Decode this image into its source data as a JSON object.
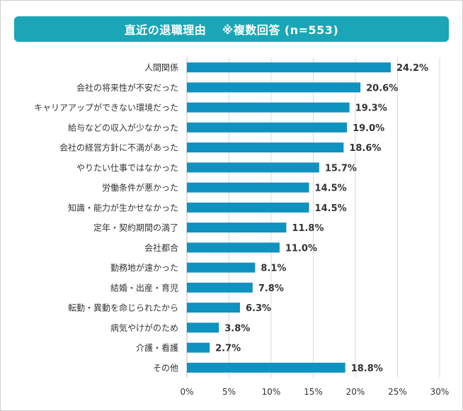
{
  "header": {
    "title": "直近の退職理由　 ※複数回答 (n=553)"
  },
  "chart_data": {
    "type": "bar",
    "orientation": "horizontal",
    "title": "直近の退職理由　 ※複数回答 (n=553)",
    "categories": [
      "人間関係",
      "会社の将来性が不安だった",
      "キャリアアップができない環境だった",
      "給与などの収入が少なかった",
      "会社の経営方針に不満があった",
      "やりたい仕事ではなかった",
      "労働条件が悪かった",
      "知識・能力が生かせなかった",
      "定年・契約期間の満了",
      "会社都合",
      "勤務地が遠かった",
      "結婚・出産・育児",
      "転勤・異動を命じられたから",
      "病気やけがのため",
      "介護・看護",
      "その他"
    ],
    "values": [
      24.2,
      20.6,
      19.3,
      19.0,
      18.6,
      15.7,
      14.5,
      14.5,
      11.8,
      11.0,
      8.1,
      7.8,
      6.3,
      3.8,
      2.7,
      18.8
    ],
    "value_labels": [
      "24.2%",
      "20.6%",
      "19.3%",
      "19.0%",
      "18.6%",
      "15.7%",
      "14.5%",
      "14.5%",
      "11.8%",
      "11.0%",
      "8.1%",
      "7.8%",
      "6.3%",
      "3.8%",
      "2.7%",
      "18.8%"
    ],
    "xlim": [
      0,
      30
    ],
    "xticks": [
      0,
      5,
      10,
      15,
      20,
      25,
      30
    ],
    "xtick_labels": [
      "0%",
      "5%",
      "10%",
      "15%",
      "20%",
      "25%",
      "30%"
    ],
    "xlabel": "",
    "ylabel": "",
    "grid": "vertical",
    "legend": "none",
    "colors": {
      "bar": "#0e92c0",
      "title_bg": "#1aa6b7",
      "grid": "#d9d9d9",
      "text": "#333333"
    }
  }
}
